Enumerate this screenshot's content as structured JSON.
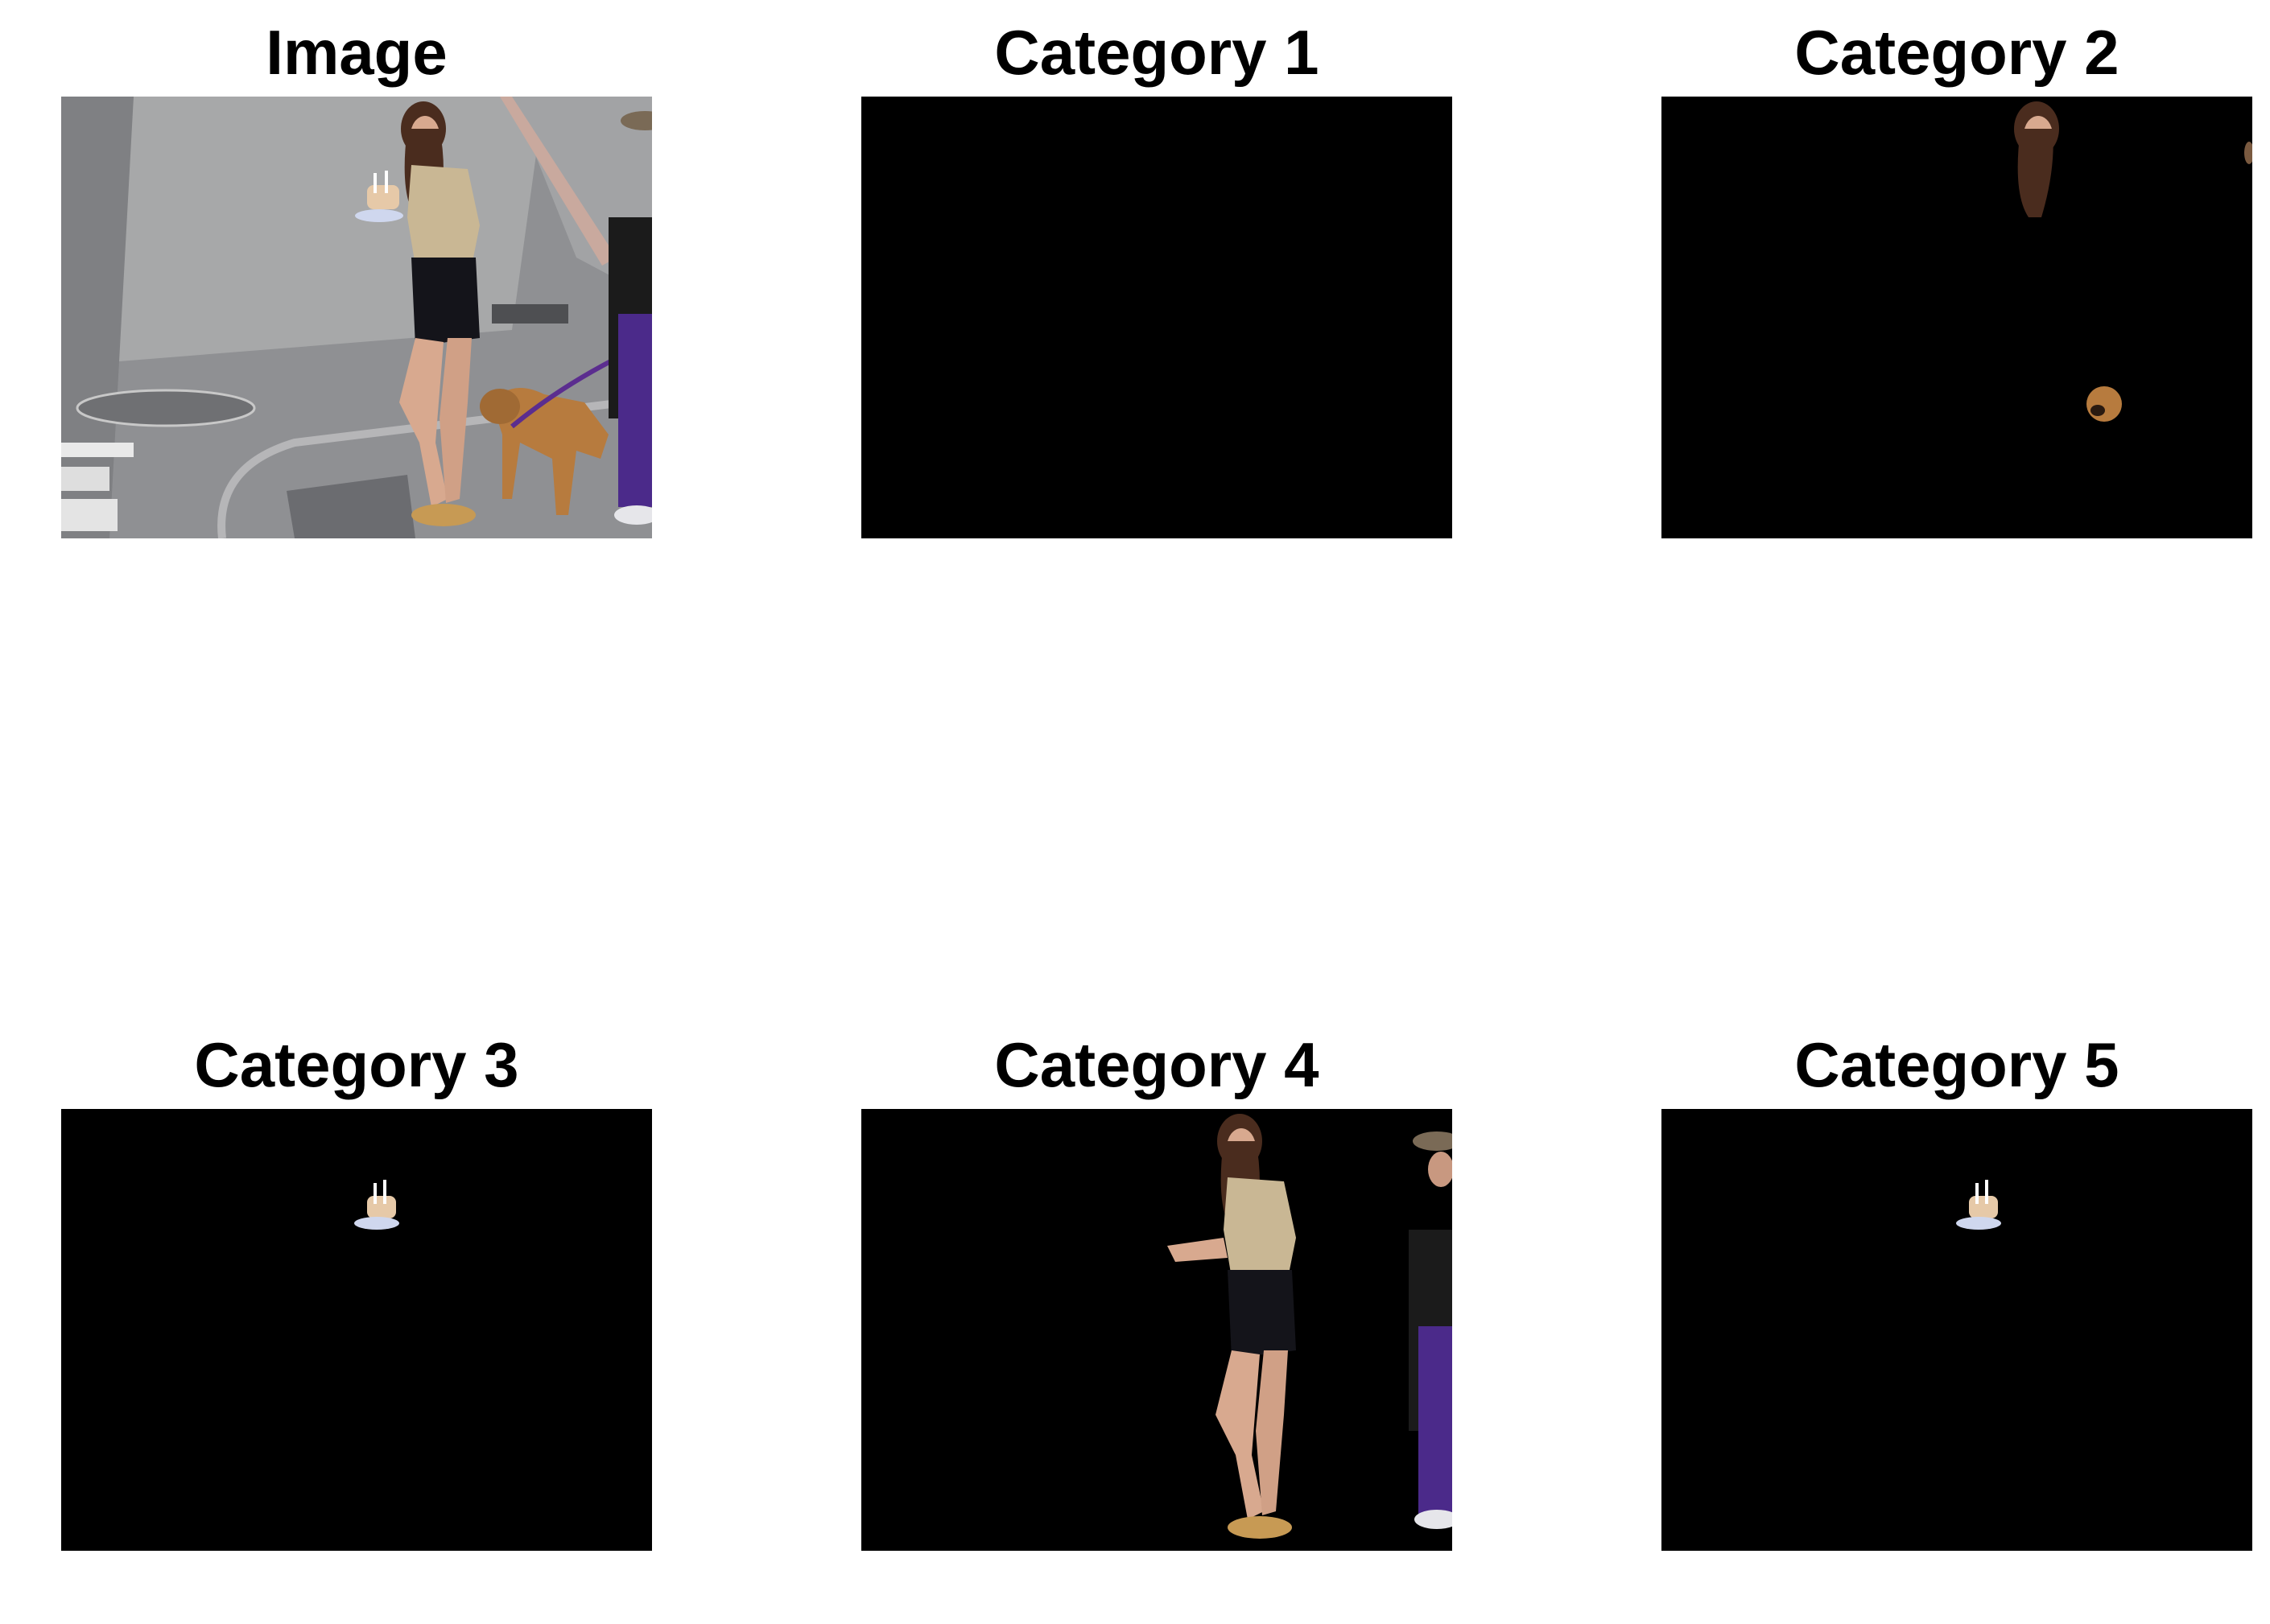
{
  "figure": {
    "panels": [
      {
        "id": "image",
        "title": "Image",
        "content": "street scene: woman holding cupcake with candles, dog on purple leash, person in purple pants"
      },
      {
        "id": "category-1",
        "title": "Category 1",
        "content": "empty mask"
      },
      {
        "id": "category-2",
        "title": "Category 2",
        "content": "woman's head and dog's head"
      },
      {
        "id": "category-3",
        "title": "Category 3",
        "content": "cupcake with candles"
      },
      {
        "id": "category-4",
        "title": "Category 4",
        "content": "woman's body and person on right edge"
      },
      {
        "id": "category-5",
        "title": "Category 5",
        "content": "cupcake with candles"
      }
    ]
  },
  "colors": {
    "background": "#ffffff",
    "mask": "#000000",
    "pavement": "#8f9093",
    "skin": "#d8a98f",
    "hair": "#4a2c1e",
    "shorts": "#14141a",
    "blouse": "#c9b794",
    "dog": "#b77b3e",
    "leash": "#5b2d8f",
    "pants": "#4b2a8a"
  }
}
